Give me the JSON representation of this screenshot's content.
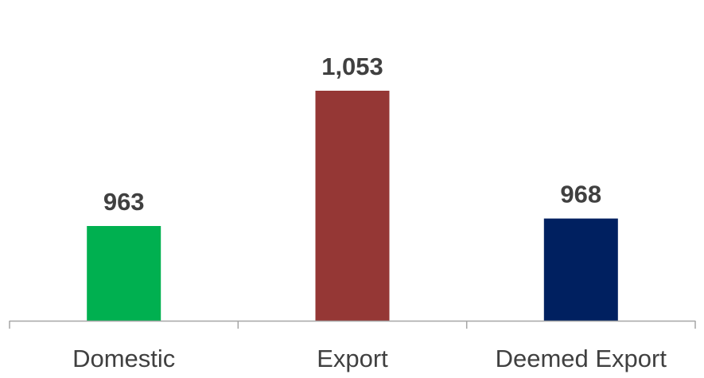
{
  "chart_data": {
    "type": "bar",
    "categories": [
      "Domestic",
      "Export",
      "Deemed Export"
    ],
    "values": [
      963,
      1053,
      968
    ],
    "data_labels": [
      "963",
      "1,053",
      "968"
    ],
    "colors": [
      "#00b050",
      "#953735",
      "#002060"
    ],
    "title": "",
    "xlabel": "",
    "ylabel": "",
    "ylim": [
      900,
      1080
    ],
    "grid": false,
    "legend": "none",
    "axis_color": "#a6a6a6",
    "text_color": "#404040"
  }
}
